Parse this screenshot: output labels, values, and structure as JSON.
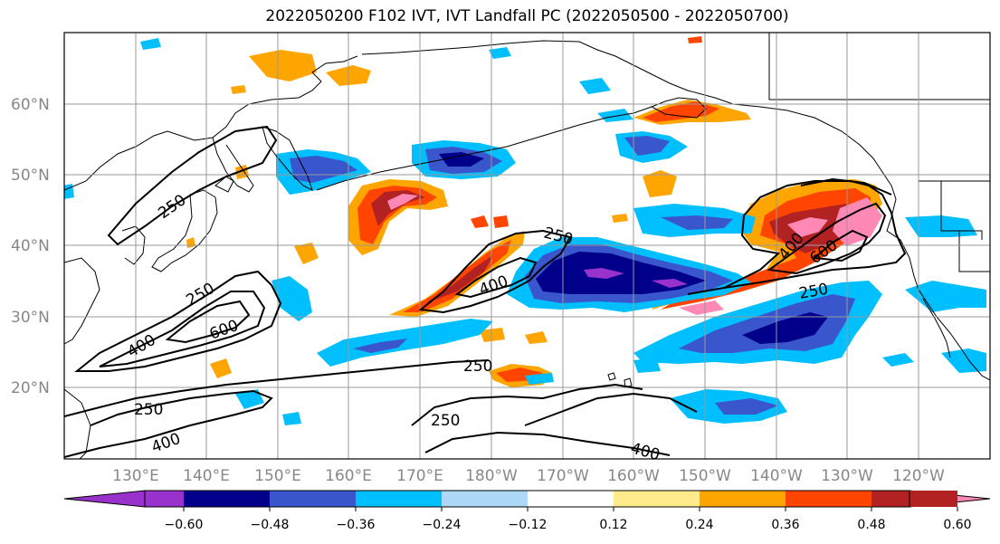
{
  "title": "2022050200 F102 IVT, IVT Landfall PC (2022050500 - 2022050700)",
  "lat_labels": [
    "60°N",
    "50°N",
    "40°N",
    "30°N",
    "20°N"
  ],
  "lon_labels": [
    "130°E",
    "140°E",
    "150°E",
    "160°E",
    "170°E",
    "180°W",
    "170°W",
    "160°W",
    "150°W",
    "140°W",
    "130°W",
    "120°W"
  ],
  "colorbar": {
    "colors": [
      "#9932cc",
      "#00008b",
      "#3a56cc",
      "#00bfff",
      "#add8f6",
      "#ffffff",
      "#ffeb8c",
      "#ffa500",
      "#ff4500",
      "#b22222",
      "#ff88b4"
    ],
    "tick_labels": [
      "−0.60",
      "−0.48",
      "−0.36",
      "−0.24",
      "−0.12",
      "0.12",
      "0.24",
      "0.36",
      "0.48",
      "0.60"
    ]
  },
  "contour_labels": [
    "250",
    "250",
    "400",
    "600",
    "250",
    "250",
    "400",
    "250",
    "400",
    "600",
    "250",
    "400",
    "250",
    "400"
  ]
}
